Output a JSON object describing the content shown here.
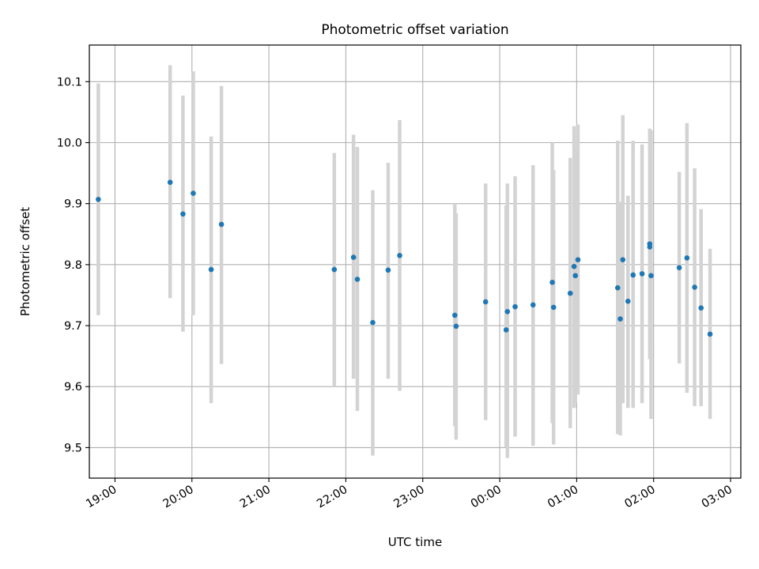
{
  "chart_data": {
    "type": "scatter",
    "title": "Photometric offset variation",
    "xlabel": "UTC time",
    "ylabel": "Photometric offset",
    "xlim": [
      "18:40",
      "03:08"
    ],
    "ylim": [
      9.45,
      10.16
    ],
    "grid": true,
    "colors": {
      "marker": "#1f77b4",
      "errorbar": "#d3d3d3",
      "grid": "#b0b0b0"
    },
    "x_ticks": [
      "19:00",
      "20:00",
      "21:00",
      "22:00",
      "23:00",
      "00:00",
      "01:00",
      "02:00",
      "03:00"
    ],
    "y_ticks": [
      "9.5",
      "9.6",
      "9.7",
      "9.8",
      "9.9",
      "10.0",
      "10.1"
    ],
    "points": [
      {
        "x": "18:47",
        "y": 9.907,
        "lo": 9.717,
        "hi": 10.097
      },
      {
        "x": "19:43",
        "y": 9.935,
        "lo": 9.745,
        "hi": 10.127
      },
      {
        "x": "19:53",
        "y": 9.883,
        "lo": 9.69,
        "hi": 10.077
      },
      {
        "x": "20:01",
        "y": 9.917,
        "lo": 9.717,
        "hi": 10.117
      },
      {
        "x": "20:15",
        "y": 9.792,
        "lo": 9.573,
        "hi": 10.01
      },
      {
        "x": "20:23",
        "y": 9.866,
        "lo": 9.637,
        "hi": 10.093
      },
      {
        "x": "21:51",
        "y": 9.792,
        "lo": 9.6,
        "hi": 9.983
      },
      {
        "x": "22:06",
        "y": 9.812,
        "lo": 9.613,
        "hi": 10.013
      },
      {
        "x": "22:09",
        "y": 9.776,
        "lo": 9.56,
        "hi": 9.993
      },
      {
        "x": "22:21",
        "y": 9.705,
        "lo": 9.487,
        "hi": 9.922
      },
      {
        "x": "22:33",
        "y": 9.791,
        "lo": 9.613,
        "hi": 9.967
      },
      {
        "x": "22:42",
        "y": 9.815,
        "lo": 9.593,
        "hi": 10.037
      },
      {
        "x": "23:25",
        "y": 9.717,
        "lo": 9.535,
        "hi": 9.9
      },
      {
        "x": "23:26",
        "y": 9.699,
        "lo": 9.513,
        "hi": 9.884
      },
      {
        "x": "23:49",
        "y": 9.739,
        "lo": 9.545,
        "hi": 9.933
      },
      {
        "x": "00:05",
        "y": 9.693,
        "lo": 9.5,
        "hi": 9.897
      },
      {
        "x": "00:06",
        "y": 9.723,
        "lo": 9.483,
        "hi": 9.933
      },
      {
        "x": "00:12",
        "y": 9.731,
        "lo": 9.518,
        "hi": 9.945
      },
      {
        "x": "00:26",
        "y": 9.734,
        "lo": 9.503,
        "hi": 9.963
      },
      {
        "x": "00:41",
        "y": 9.771,
        "lo": 9.54,
        "hi": 10.0
      },
      {
        "x": "00:42",
        "y": 9.73,
        "lo": 9.505,
        "hi": 9.955
      },
      {
        "x": "00:55",
        "y": 9.753,
        "lo": 9.532,
        "hi": 9.975
      },
      {
        "x": "00:58",
        "y": 9.797,
        "lo": 9.565,
        "hi": 10.027
      },
      {
        "x": "00:59",
        "y": 9.782,
        "lo": 9.573,
        "hi": 9.993
      },
      {
        "x": "01:01",
        "y": 9.808,
        "lo": 9.587,
        "hi": 10.03
      },
      {
        "x": "01:32",
        "y": 9.762,
        "lo": 9.522,
        "hi": 10.003
      },
      {
        "x": "01:34",
        "y": 9.711,
        "lo": 9.52,
        "hi": 9.903
      },
      {
        "x": "01:36",
        "y": 9.808,
        "lo": 9.573,
        "hi": 10.045
      },
      {
        "x": "01:40",
        "y": 9.74,
        "lo": 9.565,
        "hi": 9.913
      },
      {
        "x": "01:44",
        "y": 9.783,
        "lo": 9.565,
        "hi": 10.003
      },
      {
        "x": "01:51",
        "y": 9.785,
        "lo": 9.573,
        "hi": 9.997
      },
      {
        "x": "01:57",
        "y": 9.834,
        "lo": 9.645,
        "hi": 10.023
      },
      {
        "x": "01:57",
        "y": 9.829,
        "lo": 9.663,
        "hi": 9.995
      },
      {
        "x": "01:58",
        "y": 9.782,
        "lo": 9.547,
        "hi": 10.02
      },
      {
        "x": "02:20",
        "y": 9.795,
        "lo": 9.638,
        "hi": 9.952
      },
      {
        "x": "02:26",
        "y": 9.811,
        "lo": 9.59,
        "hi": 10.032
      },
      {
        "x": "02:32",
        "y": 9.763,
        "lo": 9.568,
        "hi": 9.958
      },
      {
        "x": "02:37",
        "y": 9.729,
        "lo": 9.568,
        "hi": 9.891
      },
      {
        "x": "02:44",
        "y": 9.686,
        "lo": 9.547,
        "hi": 9.826
      }
    ]
  }
}
